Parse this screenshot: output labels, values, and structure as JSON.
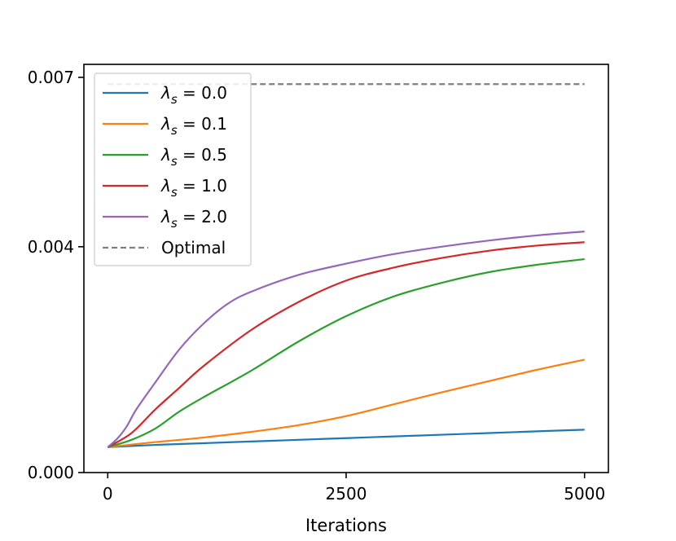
{
  "chart_data": {
    "type": "line",
    "title": "",
    "xlabel": "Iterations",
    "ylabel": "",
    "xlim": [
      -250,
      5250
    ],
    "ylim": [
      0.0,
      0.00723
    ],
    "x_ticks": [
      0,
      2500,
      5000
    ],
    "x_tick_labels": [
      "0",
      "2500",
      "5000"
    ],
    "y_ticks": [
      0.0,
      0.004,
      0.007
    ],
    "y_tick_labels": [
      "0.000",
      "0.004",
      "0.007"
    ],
    "grid": false,
    "legend_position": "upper-left",
    "series": [
      {
        "name": "λs = 0.0",
        "legend": {
          "symbol": "λ",
          "sub": "s",
          "rest": " = 0.0"
        },
        "color": "#1f77b4",
        "style": "solid",
        "x": [
          0,
          500,
          1000,
          1500,
          2000,
          2500,
          3000,
          3500,
          4000,
          4500,
          5000
        ],
        "y": [
          0.00045,
          0.00049,
          0.00052,
          0.00055,
          0.00058,
          0.00061,
          0.00064,
          0.00067,
          0.0007,
          0.00073,
          0.00076
        ]
      },
      {
        "name": "λs = 0.1",
        "legend": {
          "symbol": "λ",
          "sub": "s",
          "rest": " = 0.1"
        },
        "color": "#ff7f0e",
        "style": "solid",
        "x": [
          0,
          500,
          1000,
          1500,
          2000,
          2500,
          3000,
          3500,
          4000,
          4500,
          5000
        ],
        "y": [
          0.00045,
          0.00054,
          0.00062,
          0.00072,
          0.00084,
          0.001,
          0.00121,
          0.00142,
          0.00162,
          0.00182,
          0.002
        ]
      },
      {
        "name": "λs = 0.5",
        "legend": {
          "symbol": "λ",
          "sub": "s",
          "rest": " = 0.5"
        },
        "color": "#2ca02c",
        "style": "solid",
        "x": [
          0,
          250,
          500,
          750,
          1000,
          1500,
          2000,
          2500,
          3000,
          3500,
          4000,
          4500,
          5000
        ],
        "y": [
          0.00045,
          0.00058,
          0.00078,
          0.00108,
          0.00133,
          0.0018,
          0.00232,
          0.00277,
          0.00312,
          0.00336,
          0.00355,
          0.00368,
          0.00378
        ]
      },
      {
        "name": "λs = 1.0",
        "legend": {
          "symbol": "λ",
          "sub": "s",
          "rest": " = 1.0"
        },
        "color": "#d62728",
        "style": "solid",
        "x": [
          0,
          250,
          500,
          750,
          1000,
          1500,
          2000,
          2500,
          3000,
          3500,
          4000,
          4500,
          5000
        ],
        "y": [
          0.00045,
          0.0007,
          0.00112,
          0.0015,
          0.00188,
          0.00252,
          0.00302,
          0.0034,
          0.00363,
          0.0038,
          0.00393,
          0.00402,
          0.00408
        ]
      },
      {
        "name": "λs = 2.0",
        "legend": {
          "symbol": "λ",
          "sub": "s",
          "rest": " = 2.0"
        },
        "color": "#9467bd",
        "style": "solid",
        "x": [
          0,
          100,
          200,
          300,
          500,
          750,
          1000,
          1250,
          1500,
          2000,
          2500,
          3000,
          3500,
          4000,
          4500,
          5000
        ],
        "y": [
          0.00045,
          0.0006,
          0.00082,
          0.00112,
          0.0016,
          0.00218,
          0.00263,
          0.00298,
          0.0032,
          0.0035,
          0.0037,
          0.00387,
          0.004,
          0.00411,
          0.0042,
          0.00427
        ]
      },
      {
        "name": "Optimal",
        "legend": {
          "symbol": "",
          "sub": "",
          "rest": "Optimal"
        },
        "color": "#7f7f7f",
        "style": "dashed",
        "x": [
          0,
          5000
        ],
        "y": [
          0.00688,
          0.00688
        ]
      }
    ]
  }
}
